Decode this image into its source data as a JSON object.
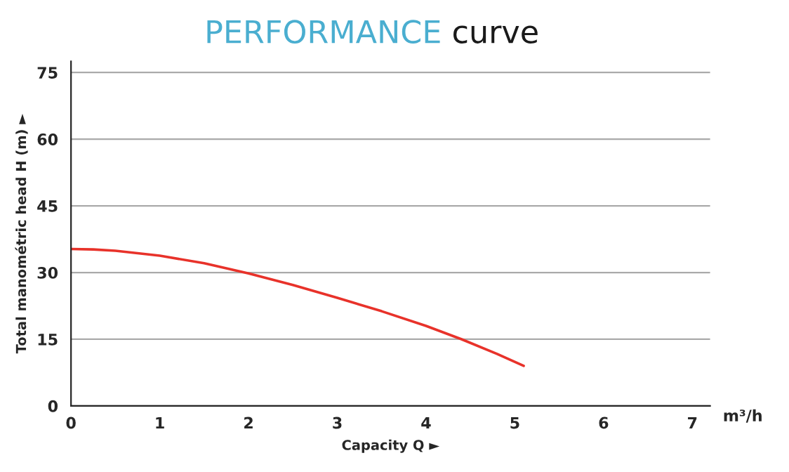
{
  "chart_data": {
    "type": "line",
    "title": "PERFORMANCE curve",
    "xlabel": "Capacity Q ►",
    "ylabel": "Total manométric head H (m) ►",
    "annotations": [
      "m³/h"
    ],
    "x": [
      0,
      0.25,
      0.5,
      1,
      1.5,
      2,
      2.5,
      3,
      3.5,
      4,
      4.4,
      4.8,
      5.1
    ],
    "series": [
      {
        "color": "#e8322a",
        "values": [
          35.3,
          35.2,
          34.9,
          33.8,
          32.1,
          29.8,
          27.2,
          24.3,
          21.3,
          18.0,
          15.0,
          11.7,
          9.0
        ]
      }
    ],
    "xlim": [
      0,
      7.2
    ],
    "ylim": [
      0,
      77.5
    ],
    "xticks": [
      0,
      1,
      2,
      3,
      4,
      5,
      6,
      7
    ],
    "yticks": [
      0,
      15,
      30,
      45,
      60,
      75
    ],
    "grid": "y",
    "marker": "none",
    "line_style": "solid"
  }
}
